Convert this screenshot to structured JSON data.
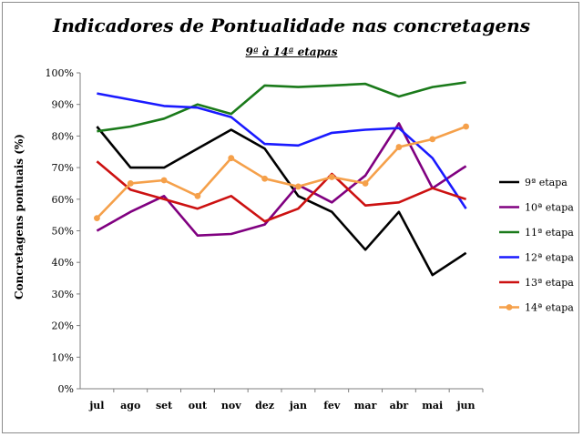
{
  "chart_data": {
    "type": "line",
    "title": "Indicadores de Pontualidade nas concretagens",
    "subtitle": "9ª à 14ª etapas",
    "xlabel": "",
    "ylabel": "Concretagens pontuais (%)",
    "ylim": [
      0,
      100
    ],
    "yticks": [
      "0%",
      "10%",
      "20%",
      "30%",
      "40%",
      "50%",
      "60%",
      "70%",
      "80%",
      "90%",
      "100%"
    ],
    "grid": false,
    "legend_position": "right",
    "categories": [
      "jul",
      "ago",
      "set",
      "out",
      "nov",
      "dez",
      "jan",
      "fev",
      "mar",
      "abr",
      "mai",
      "jun"
    ],
    "series": [
      {
        "name": "9ª etapa",
        "color": "#000000",
        "marker": false,
        "values": [
          83,
          70,
          70,
          76,
          82,
          76,
          61,
          56,
          44,
          56,
          36,
          43
        ]
      },
      {
        "name": "10ª etapa",
        "color": "#800080",
        "marker": false,
        "values": [
          50,
          56,
          61,
          48.5,
          49,
          52,
          64.5,
          59,
          67.5,
          84,
          63.5,
          70.5
        ]
      },
      {
        "name": "11ª etapa",
        "color": "#1a7a1a",
        "marker": false,
        "values": [
          81.5,
          83,
          85.5,
          90,
          87,
          96,
          95.5,
          96,
          96.5,
          92.5,
          95.5,
          97
        ]
      },
      {
        "name": "12ª etapa",
        "color": "#1a1aff",
        "marker": false,
        "values": [
          93.5,
          91.5,
          89.5,
          89,
          86,
          77.5,
          77,
          81,
          82,
          82.5,
          73,
          57
        ]
      },
      {
        "name": "13ª etapa",
        "color": "#cc1111",
        "marker": false,
        "values": [
          72,
          63,
          60,
          57,
          61,
          53,
          57,
          68,
          58,
          59,
          63.5,
          60
        ]
      },
      {
        "name": "14ª etapa",
        "color": "#f5a04a",
        "marker": true,
        "values": [
          54,
          65,
          66,
          61,
          73,
          66.5,
          64,
          67,
          65,
          76.5,
          79,
          83
        ]
      }
    ]
  }
}
